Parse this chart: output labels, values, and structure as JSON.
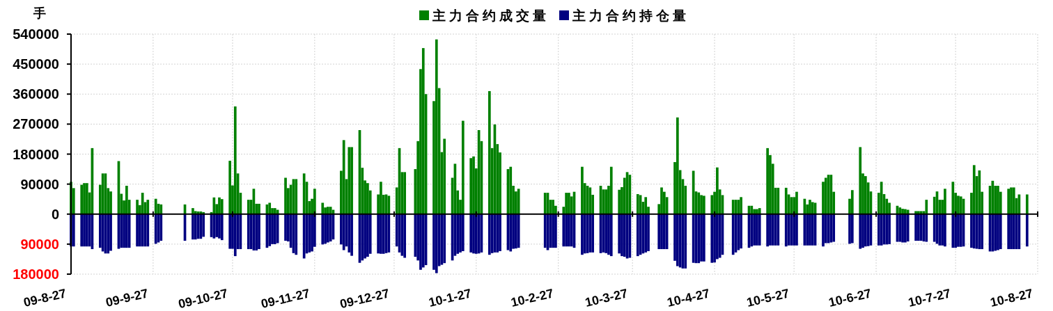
{
  "chart_data": {
    "type": "bar",
    "stacked": true,
    "ylabel": "手",
    "legend": "top",
    "grid": true,
    "xlim": [
      "2009-08-27",
      "2010-08-27"
    ],
    "xticks": [
      {
        "value": "2009-08-27",
        "label": "09-8-27"
      },
      {
        "value": "2009-09-27",
        "label": "09-9-27"
      },
      {
        "value": "2009-10-27",
        "label": "09-10-27"
      },
      {
        "value": "2009-11-27",
        "label": "09-11-27"
      },
      {
        "value": "2009-12-27",
        "label": "09-12-27"
      },
      {
        "value": "2010-01-27",
        "label": "10-1-27"
      },
      {
        "value": "2010-02-27",
        "label": "10-2-27"
      },
      {
        "value": "2010-03-27",
        "label": "10-3-27"
      },
      {
        "value": "2010-04-27",
        "label": "10-4-27"
      },
      {
        "value": "2010-05-27",
        "label": "10-5-27"
      },
      {
        "value": "2010-06-27",
        "label": "10-6-27"
      },
      {
        "value": "2010-07-27",
        "label": "10-7-27"
      },
      {
        "value": "2010-08-27",
        "label": "10-8-27"
      }
    ],
    "ylim": [
      -180000,
      540000
    ],
    "yticks": [
      {
        "value": -180000,
        "label": "180000"
      },
      {
        "value": -90000,
        "label": "90000"
      },
      0,
      90000,
      180000,
      270000,
      360000,
      450000,
      540000
    ],
    "x": [
      "2009-08-27",
      "2009-08-28",
      "2009-08-31",
      "2009-09-01",
      "2009-09-02",
      "2009-09-03",
      "2009-09-04",
      "2009-09-07",
      "2009-09-08",
      "2009-09-09",
      "2009-09-10",
      "2009-09-11",
      "2009-09-14",
      "2009-09-15",
      "2009-09-16",
      "2009-09-17",
      "2009-09-18",
      "2009-09-21",
      "2009-09-22",
      "2009-09-23",
      "2009-09-24",
      "2009-09-25",
      "2009-09-28",
      "2009-09-29",
      "2009-09-30",
      "2009-10-09",
      "2009-10-12",
      "2009-10-13",
      "2009-10-14",
      "2009-10-15",
      "2009-10-16",
      "2009-10-19",
      "2009-10-20",
      "2009-10-21",
      "2009-10-22",
      "2009-10-23",
      "2009-10-26",
      "2009-10-27",
      "2009-10-28",
      "2009-10-29",
      "2009-10-30",
      "2009-11-02",
      "2009-11-03",
      "2009-11-04",
      "2009-11-05",
      "2009-11-06",
      "2009-11-09",
      "2009-11-10",
      "2009-11-11",
      "2009-11-12",
      "2009-11-13",
      "2009-11-16",
      "2009-11-17",
      "2009-11-18",
      "2009-11-19",
      "2009-11-20",
      "2009-11-23",
      "2009-11-24",
      "2009-11-25",
      "2009-11-26",
      "2009-11-27",
      "2009-11-30",
      "2009-12-01",
      "2009-12-02",
      "2009-12-03",
      "2009-12-04",
      "2009-12-07",
      "2009-12-08",
      "2009-12-09",
      "2009-12-10",
      "2009-12-11",
      "2009-12-14",
      "2009-12-15",
      "2009-12-16",
      "2009-12-17",
      "2009-12-18",
      "2009-12-21",
      "2009-12-22",
      "2009-12-23",
      "2009-12-24",
      "2009-12-25",
      "2009-12-28",
      "2009-12-29",
      "2009-12-30",
      "2009-12-31",
      "2010-01-04",
      "2010-01-05",
      "2010-01-06",
      "2010-01-07",
      "2010-01-08",
      "2010-01-11",
      "2010-01-12",
      "2010-01-13",
      "2010-01-14",
      "2010-01-15",
      "2010-01-18",
      "2010-01-19",
      "2010-01-20",
      "2010-01-21",
      "2010-01-22",
      "2010-01-25",
      "2010-01-26",
      "2010-01-27",
      "2010-01-28",
      "2010-01-29",
      "2010-02-01",
      "2010-02-02",
      "2010-02-03",
      "2010-02-04",
      "2010-02-05",
      "2010-02-08",
      "2010-02-09",
      "2010-02-10",
      "2010-02-11",
      "2010-02-12",
      "2010-02-22",
      "2010-02-23",
      "2010-02-24",
      "2010-02-25",
      "2010-02-26",
      "2010-03-01",
      "2010-03-02",
      "2010-03-03",
      "2010-03-04",
      "2010-03-05",
      "2010-03-08",
      "2010-03-09",
      "2010-03-10",
      "2010-03-11",
      "2010-03-12",
      "2010-03-15",
      "2010-03-16",
      "2010-03-17",
      "2010-03-18",
      "2010-03-19",
      "2010-03-22",
      "2010-03-23",
      "2010-03-24",
      "2010-03-25",
      "2010-03-26",
      "2010-03-29",
      "2010-03-30",
      "2010-03-31",
      "2010-04-01",
      "2010-04-02",
      "2010-04-06",
      "2010-04-07",
      "2010-04-08",
      "2010-04-09",
      "2010-04-12",
      "2010-04-13",
      "2010-04-14",
      "2010-04-15",
      "2010-04-16",
      "2010-04-19",
      "2010-04-20",
      "2010-04-21",
      "2010-04-22",
      "2010-04-23",
      "2010-04-26",
      "2010-04-27",
      "2010-04-28",
      "2010-04-29",
      "2010-04-30",
      "2010-05-04",
      "2010-05-05",
      "2010-05-06",
      "2010-05-07",
      "2010-05-10",
      "2010-05-11",
      "2010-05-12",
      "2010-05-13",
      "2010-05-14",
      "2010-05-17",
      "2010-05-18",
      "2010-05-19",
      "2010-05-20",
      "2010-05-21",
      "2010-05-24",
      "2010-05-25",
      "2010-05-26",
      "2010-05-27",
      "2010-05-28",
      "2010-05-31",
      "2010-06-01",
      "2010-06-02",
      "2010-06-03",
      "2010-06-04",
      "2010-06-07",
      "2010-06-08",
      "2010-06-09",
      "2010-06-10",
      "2010-06-11",
      "2010-06-17",
      "2010-06-18",
      "2010-06-21",
      "2010-06-22",
      "2010-06-23",
      "2010-06-24",
      "2010-06-25",
      "2010-06-28",
      "2010-06-29",
      "2010-06-30",
      "2010-07-01",
      "2010-07-02",
      "2010-07-05",
      "2010-07-06",
      "2010-07-07",
      "2010-07-08",
      "2010-07-09",
      "2010-07-12",
      "2010-07-13",
      "2010-07-14",
      "2010-07-15",
      "2010-07-16",
      "2010-07-19",
      "2010-07-20",
      "2010-07-21",
      "2010-07-22",
      "2010-07-23",
      "2010-07-26",
      "2010-07-27",
      "2010-07-28",
      "2010-07-29",
      "2010-07-30",
      "2010-08-02",
      "2010-08-03",
      "2010-08-04",
      "2010-08-05",
      "2010-08-06",
      "2010-08-09",
      "2010-08-10",
      "2010-08-11",
      "2010-08-12",
      "2010-08-13",
      "2010-08-16",
      "2010-08-17",
      "2010-08-18",
      "2010-08-19",
      "2010-08-20",
      "2010-08-23"
    ],
    "series": [
      {
        "name": "主力合约成交量",
        "color": "#008000",
        "values": [
          97000,
          78000,
          88000,
          93000,
          93000,
          65000,
          198000,
          88000,
          122000,
          122000,
          78000,
          68000,
          159000,
          61000,
          41000,
          85000,
          43000,
          43000,
          27000,
          64000,
          36000,
          43000,
          46000,
          31000,
          29000,
          29000,
          18000,
          9000,
          8000,
          8000,
          6000,
          6000,
          50000,
          30000,
          50000,
          45000,
          160000,
          86000,
          323000,
          122000,
          64000,
          43000,
          43000,
          76000,
          31000,
          31000,
          29000,
          34000,
          18000,
          18000,
          13000,
          109000,
          78000,
          88000,
          105000,
          105000,
          122000,
          97000,
          39000,
          46000,
          76000,
          34000,
          20000,
          22000,
          22000,
          13000,
          130000,
          222000,
          105000,
          201000,
          201000,
          252000,
          139000,
          101000,
          93000,
          71000,
          59000,
          97000,
          58000,
          59000,
          55000,
          80000,
          198000,
          126000,
          126000,
          135000,
          219000,
          435000,
          498000,
          360000,
          339000,
          524000,
          378000,
          186000,
          226000,
          109000,
          151000,
          71000,
          43000,
          280000,
          168000,
          173000,
          137000,
          252000,
          219000,
          369000,
          198000,
          269000,
          210000,
          185000,
          135000,
          142000,
          85000,
          68000,
          76000,
          64000,
          64000,
          43000,
          43000,
          25000,
          22000,
          64000,
          64000,
          53000,
          67000,
          142000,
          93000,
          85000,
          80000,
          58000,
          85000,
          74000,
          74000,
          85000,
          142000,
          73000,
          81000,
          109000,
          126000,
          118000,
          60000,
          57000,
          37000,
          51000,
          22000,
          30000,
          80000,
          67000,
          51000,
          156000,
          290000,
          132000,
          105000,
          85000,
          130000,
          68000,
          65000,
          57000,
          55000,
          57000,
          67000,
          140000,
          74000,
          57000,
          43000,
          43000,
          43000,
          51000,
          25000,
          25000,
          15000,
          15000,
          18000,
          198000,
          177000,
          151000,
          79000,
          79000,
          79000,
          59000,
          51000,
          51000,
          67000,
          46000,
          29000,
          43000,
          36000,
          34000,
          97000,
          109000,
          118000,
          118000,
          67000,
          46000,
          72000,
          201000,
          122000,
          114000,
          95000,
          68000,
          64000,
          97000,
          60000,
          46000,
          34000,
          25000,
          20000,
          16000,
          15000,
          13000,
          9000,
          9000,
          9000,
          9000,
          43000,
          52000,
          68000,
          43000,
          43000,
          76000,
          97000,
          64000,
          55000,
          53000,
          46000,
          64000,
          147000,
          114000,
          131000,
          67000,
          85000,
          100000,
          85000,
          85000,
          67000,
          76000,
          80000,
          80000,
          48000,
          59000,
          59000
        ]
      },
      {
        "name": "主力合约持仓量",
        "color": "#000080",
        "values": [
          -97000,
          -97000,
          -97000,
          -97000,
          -97000,
          -97000,
          -105000,
          -101000,
          -112000,
          -118000,
          -118000,
          -110000,
          -104000,
          -101000,
          -101000,
          -101000,
          -101000,
          -97000,
          -97000,
          -97000,
          -97000,
          -97000,
          -89000,
          -85000,
          -80000,
          -80000,
          -76000,
          -76000,
          -74000,
          -74000,
          -68000,
          -69000,
          -73000,
          -69000,
          -73000,
          -78000,
          -104000,
          -104000,
          -126000,
          -105000,
          -105000,
          -105000,
          -105000,
          -109000,
          -109000,
          -105000,
          -101000,
          -96000,
          -90000,
          -90000,
          -87000,
          -80000,
          -82000,
          -101000,
          -117000,
          -122000,
          -133000,
          -118000,
          -115000,
          -112000,
          -98000,
          -91000,
          -89000,
          -85000,
          -82000,
          -76000,
          -91000,
          -108000,
          -97000,
          -115000,
          -125000,
          -146000,
          -139000,
          -133000,
          -128000,
          -119000,
          -118000,
          -119000,
          -119000,
          -117000,
          -115000,
          -97000,
          -115000,
          -125000,
          -131000,
          -128000,
          -139000,
          -167000,
          -160000,
          -153000,
          -167000,
          -177000,
          -156000,
          -152000,
          -147000,
          -139000,
          -125000,
          -119000,
          -115000,
          -111000,
          -115000,
          -118000,
          -119000,
          -118000,
          -115000,
          -122000,
          -117000,
          -115000,
          -115000,
          -111000,
          -108000,
          -112000,
          -104000,
          -103000,
          -101000,
          -101000,
          -108000,
          -101000,
          -101000,
          -101000,
          -97000,
          -97000,
          -97000,
          -97000,
          -101000,
          -122000,
          -118000,
          -117000,
          -115000,
          -115000,
          -117000,
          -115000,
          -117000,
          -122000,
          -126000,
          -118000,
          -126000,
          -128000,
          -133000,
          -131000,
          -126000,
          -122000,
          -118000,
          -115000,
          -111000,
          -105000,
          -105000,
          -105000,
          -105000,
          -140000,
          -156000,
          -160000,
          -163000,
          -163000,
          -146000,
          -147000,
          -147000,
          -142000,
          -142000,
          -146000,
          -145000,
          -135000,
          -131000,
          -122000,
          -122000,
          -115000,
          -108000,
          -103000,
          -101000,
          -97000,
          -94000,
          -94000,
          -94000,
          -97000,
          -94000,
          -94000,
          -94000,
          -94000,
          -97000,
          -94000,
          -94000,
          -94000,
          -94000,
          -94000,
          -94000,
          -94000,
          -94000,
          -94000,
          -97000,
          -87000,
          -87000,
          -85000,
          -83000,
          -89000,
          -87000,
          -104000,
          -101000,
          -97000,
          -96000,
          -94000,
          -94000,
          -94000,
          -91000,
          -91000,
          -90000,
          -83000,
          -83000,
          -85000,
          -85000,
          -82000,
          -80000,
          -80000,
          -80000,
          -82000,
          -83000,
          -83000,
          -89000,
          -94000,
          -94000,
          -97000,
          -101000,
          -101000,
          -98000,
          -98000,
          -97000,
          -101000,
          -103000,
          -104000,
          -105000,
          -105000,
          -112000,
          -112000,
          -110000,
          -108000,
          -105000,
          -105000,
          -105000,
          -105000,
          -105000,
          -105000,
          -97000
        ]
      }
    ]
  }
}
